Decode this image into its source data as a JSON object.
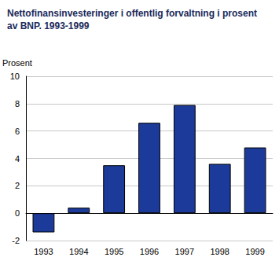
{
  "chart_data": {
    "type": "bar",
    "title": "Nettofinansinvesteringer i offentlig forvaltning i prosent av BNP. 1993-1999",
    "y_label": "Prosent",
    "categories": [
      "1993",
      "1994",
      "1995",
      "1996",
      "1997",
      "1998",
      "1999"
    ],
    "values": [
      -1.4,
      0.4,
      3.5,
      6.6,
      7.9,
      3.6,
      4.8
    ],
    "color": "#1c3a99",
    "ylim": [
      -2,
      10
    ],
    "yticks": [
      -2,
      0,
      2,
      4,
      6,
      8,
      10
    ],
    "grid": true
  }
}
